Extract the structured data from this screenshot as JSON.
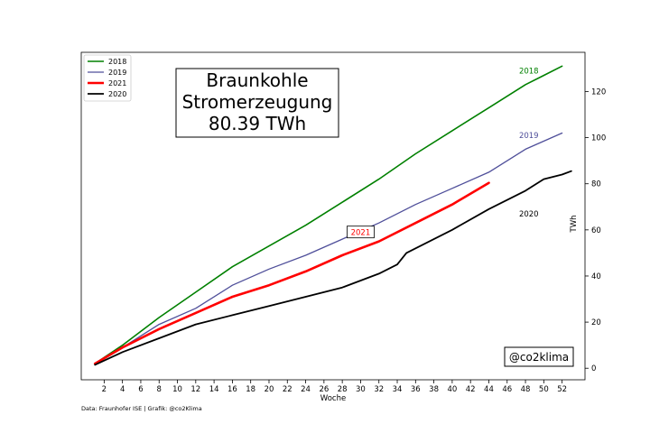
{
  "chart_data": {
    "type": "line",
    "title_lines": [
      "Braunkohle",
      "Stromerzeugung",
      "80.39 TWh"
    ],
    "xlabel": "Woche",
    "ylabel": "TWh",
    "xlim": [
      -0.5,
      54.5
    ],
    "ylim": [
      -5,
      137
    ],
    "x_ticks": [
      2,
      4,
      6,
      8,
      10,
      12,
      14,
      16,
      18,
      20,
      22,
      24,
      26,
      28,
      30,
      32,
      34,
      36,
      38,
      40,
      42,
      44,
      46,
      48,
      50,
      52
    ],
    "y_ticks": [
      0,
      20,
      40,
      60,
      80,
      100,
      120
    ],
    "y_axis_side": "right",
    "grid": false,
    "legend_position": "top-left",
    "series": [
      {
        "name": "2018",
        "color": "#008000",
        "width": 1.6,
        "x": [
          1,
          4,
          8,
          12,
          16,
          20,
          24,
          28,
          32,
          36,
          40,
          44,
          48,
          50,
          52
        ],
        "values": [
          2,
          10,
          22,
          33,
          44,
          53,
          62,
          72,
          82,
          93,
          103,
          113,
          123,
          127,
          131
        ]
      },
      {
        "name": "2019",
        "color": "#4f4f9a",
        "width": 1.3,
        "x": [
          1,
          4,
          8,
          12,
          16,
          20,
          24,
          28,
          32,
          36,
          40,
          44,
          48,
          52
        ],
        "values": [
          2,
          9,
          19,
          26,
          36,
          43,
          49,
          56,
          63,
          71,
          78,
          85,
          95,
          102
        ]
      },
      {
        "name": "2021",
        "color": "#ff0000",
        "width": 2.6,
        "x": [
          1,
          4,
          8,
          12,
          16,
          20,
          24,
          28,
          32,
          36,
          40,
          44
        ],
        "values": [
          2,
          9,
          17,
          24,
          31,
          36,
          42,
          49,
          55,
          63,
          71,
          80.39
        ]
      },
      {
        "name": "2020",
        "color": "#000000",
        "width": 1.8,
        "x": [
          1,
          4,
          8,
          12,
          16,
          20,
          24,
          28,
          32,
          34,
          35,
          38,
          40,
          44,
          48,
          50,
          52,
          53
        ],
        "values": [
          1.5,
          7,
          13,
          19,
          23,
          27,
          31,
          35,
          41,
          45,
          50,
          56,
          60,
          69,
          77,
          82,
          84,
          85.5
        ]
      }
    ],
    "series_labels": [
      {
        "text": "2018",
        "x": 47.3,
        "y": 129,
        "color": "#008000",
        "boxed": false
      },
      {
        "text": "2019",
        "x": 47.3,
        "y": 101,
        "color": "#4f4f9a",
        "boxed": false
      },
      {
        "text": "2021",
        "x": 30,
        "y": 58.5,
        "color": "#ff0000",
        "boxed": true
      },
      {
        "text": "2020",
        "x": 47.3,
        "y": 67,
        "color": "#000000",
        "boxed": false
      }
    ],
    "handle": "@co2klima",
    "source": "Data: Fraunhofer ISE | Grafik: @co2Klima"
  }
}
